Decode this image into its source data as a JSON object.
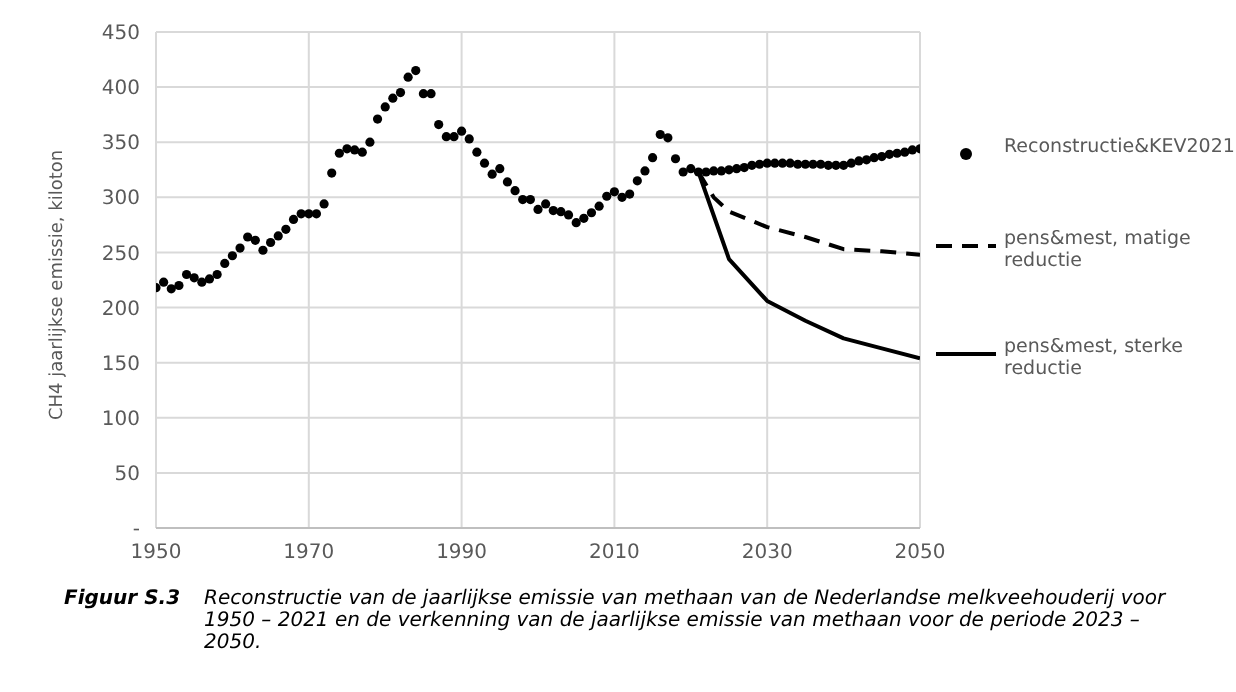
{
  "chart_data": {
    "type": "line",
    "ylabel": "CH4 jaarlijkse emissie, kiloton",
    "xlim": [
      1950,
      2050
    ],
    "xticks": [
      1950,
      1970,
      1990,
      2010,
      2030,
      2050
    ],
    "ylim": [
      0,
      450
    ],
    "yticks": [
      {
        "value": 0,
        "label": "-"
      },
      50,
      100,
      150,
      200,
      250,
      300,
      350,
      400,
      450
    ],
    "grid": true,
    "legend": "right",
    "series": [
      {
        "name": "Reconstructie&KEV2021",
        "type": "scatter",
        "marker": "circle",
        "color": "#000000",
        "x": [
          1950,
          1951,
          1952,
          1953,
          1954,
          1955,
          1956,
          1957,
          1958,
          1959,
          1960,
          1961,
          1962,
          1963,
          1964,
          1965,
          1966,
          1967,
          1968,
          1969,
          1970,
          1971,
          1972,
          1973,
          1974,
          1975,
          1976,
          1977,
          1978,
          1979,
          1980,
          1981,
          1982,
          1983,
          1984,
          1985,
          1986,
          1987,
          1988,
          1989,
          1990,
          1991,
          1992,
          1993,
          1994,
          1995,
          1996,
          1997,
          1998,
          1999,
          2000,
          2001,
          2002,
          2003,
          2004,
          2005,
          2006,
          2007,
          2008,
          2009,
          2010,
          2011,
          2012,
          2013,
          2014,
          2015,
          2016,
          2017,
          2018,
          2019,
          2020,
          2021,
          2022,
          2023,
          2024,
          2025,
          2026,
          2027,
          2028,
          2029,
          2030,
          2031,
          2032,
          2033,
          2034,
          2035,
          2036,
          2037,
          2038,
          2039,
          2040,
          2041,
          2042,
          2043,
          2044,
          2045,
          2046,
          2047,
          2048,
          2049,
          2050
        ],
        "values": [
          218,
          223,
          217,
          220,
          230,
          227,
          223,
          226,
          230,
          240,
          247,
          254,
          264,
          261,
          252,
          259,
          265,
          271,
          280,
          285,
          285,
          285,
          294,
          322,
          340,
          344,
          343,
          341,
          350,
          371,
          382,
          390,
          395,
          409,
          415,
          394,
          394,
          366,
          355,
          355,
          360,
          353,
          341,
          331,
          321,
          326,
          314,
          306,
          298,
          298,
          289,
          294,
          288,
          287,
          284,
          277,
          281,
          286,
          292,
          301,
          305,
          300,
          303,
          315,
          324,
          336,
          357,
          354,
          335,
          323,
          326,
          323,
          323,
          324,
          324,
          325,
          326,
          327,
          329,
          330,
          331,
          331,
          331,
          331,
          330,
          330,
          330,
          330,
          329,
          329,
          329,
          331,
          333,
          334,
          336,
          337,
          339,
          340,
          341,
          343,
          344
        ]
      },
      {
        "name": "pens&mest, matige reductie",
        "line_style": "dashed",
        "marker": "none",
        "color": "#000000",
        "x": [
          2021,
          2023,
          2025,
          2030,
          2035,
          2040,
          2045,
          2050
        ],
        "values": [
          323,
          300,
          287,
          273,
          264,
          253,
          251,
          248
        ]
      },
      {
        "name": "pens&mest, sterke reductie",
        "line_style": "solid",
        "marker": "none",
        "color": "#000000",
        "x": [
          2021,
          2025,
          2030,
          2035,
          2040,
          2045,
          2050
        ],
        "values": [
          323,
          244,
          206,
          188,
          172,
          163,
          154
        ]
      }
    ],
    "annotations": [
      "Figuur S.3",
      "Reconstructie van de jaarlijkse emissie van methaan van de Nederlandse melkveehouderij voor 1950 – 2021 en de verkenning van de jaarlijkse emissie van methaan voor de periode 2023 – 2050."
    ]
  }
}
